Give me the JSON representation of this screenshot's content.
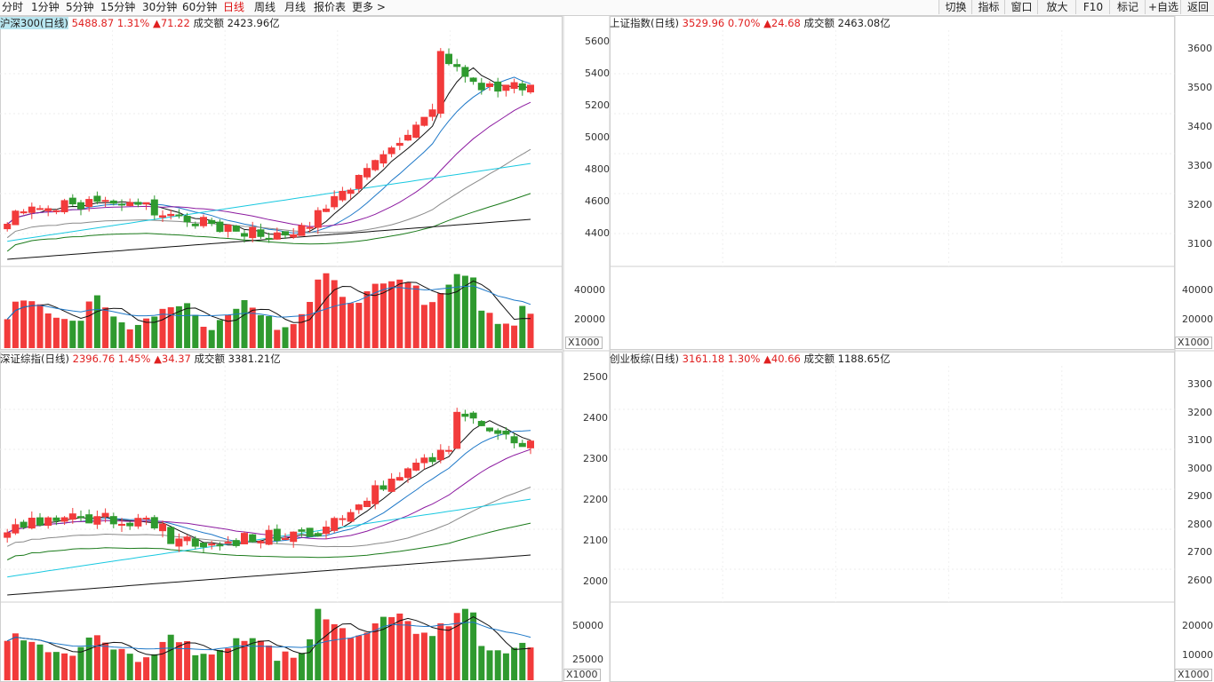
{
  "toolbar": {
    "timeframes": [
      "分时",
      "1分钟",
      "5分钟",
      "15分钟",
      "30分钟",
      "60分钟",
      "日线",
      "周线",
      "月线",
      "报价表",
      "更多 >"
    ],
    "active": "日线",
    "right_buttons": [
      "切换",
      "指标",
      "窗口",
      "放大",
      "F10",
      "标记",
      "+自选",
      "返回"
    ]
  },
  "colors": {
    "up": "#f23b3b",
    "down": "#2f9a2f",
    "ma5": "#111111",
    "ma10": "#1e78c8",
    "ma20": "#8c1aa0",
    "ma30": "#8a8a8a",
    "ma60": "#1a7a1a",
    "ma120": "#18c8e0",
    "ma250": "#111111"
  },
  "panels": [
    {
      "id": "hs300",
      "name": "沪深300(日线)",
      "name_highlight": true,
      "price": "5488.87",
      "pct": "1.31%",
      "chg": "▲71.22",
      "amount_label": "成交额",
      "amount": "2423.96亿",
      "price_ticks": [],
      "vol_ticks": [],
      "vol_unit": ""
    },
    {
      "id": "sh",
      "name": "上证指数(日线)",
      "name_highlight": false,
      "price": "3529.96",
      "pct": "0.70%",
      "chg": "▲24.68",
      "amount_label": "成交额",
      "amount": "2463.08亿",
      "price_ticks": [
        "5600",
        "5400",
        "5200",
        "5000",
        "4800",
        "4600",
        "4400"
      ],
      "vol_ticks": [
        "40000",
        "20000"
      ],
      "vol_unit": "X1000"
    },
    {
      "id": "sz",
      "name": "深证综指(日线)",
      "name_highlight": false,
      "price": "2396.76",
      "pct": "1.45%",
      "chg": "▲34.37",
      "amount_label": "成交额",
      "amount": "3381.21亿",
      "price_ticks": [],
      "vol_ticks": [],
      "vol_unit": ""
    },
    {
      "id": "cyb",
      "name": "创业板综(日线)",
      "name_highlight": false,
      "price": "3161.18",
      "pct": "1.30%",
      "chg": "▲40.66",
      "amount_label": "成交额",
      "amount": "1188.65亿",
      "price_ticks": [
        "2500",
        "2400",
        "2300",
        "2200",
        "2100",
        "2000"
      ],
      "vol_ticks": [
        "50000",
        "25000"
      ],
      "vol_unit": "X1000"
    }
  ],
  "right_axes": [
    {
      "price_ticks": [
        "3600",
        "3500",
        "3400",
        "3300",
        "3200",
        "3100"
      ],
      "vol_ticks": [
        "40000",
        "20000"
      ],
      "vol_unit": "X1000"
    },
    {
      "price_ticks": [
        "3300",
        "3200",
        "3100",
        "3000",
        "2900",
        "2800",
        "2700",
        "2600"
      ],
      "vol_ticks": [
        "20000",
        "10000"
      ],
      "vol_unit": "X1000"
    }
  ]
}
